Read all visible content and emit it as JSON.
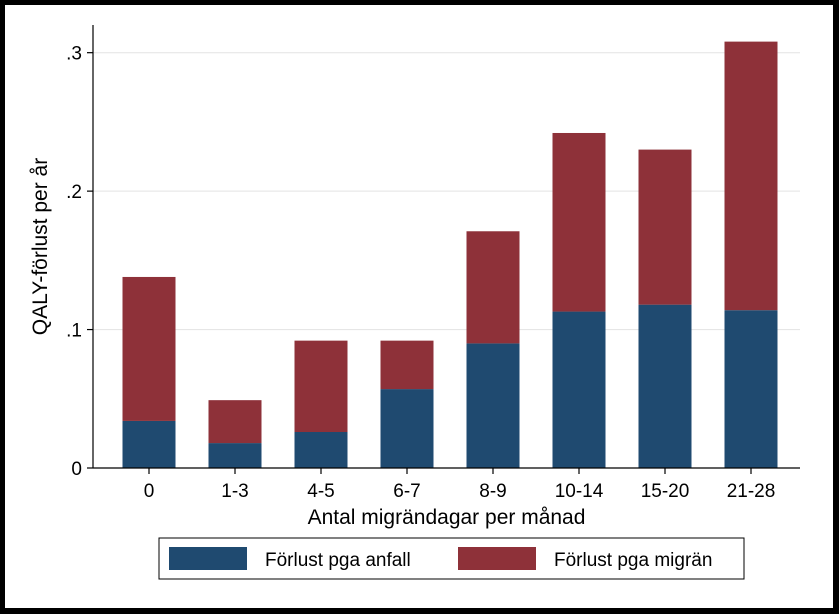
{
  "chart_data": {
    "type": "bar",
    "stacked": true,
    "title": "",
    "xlabel": "Antal migrändagar per månad",
    "ylabel": "QALY-förlust per år",
    "categories": [
      "0",
      "1-3",
      "4-5",
      "6-7",
      "8-9",
      "10-14",
      "15-20",
      "21-28"
    ],
    "ylim": [
      0,
      0.32
    ],
    "yticks": [
      0,
      0.1,
      0.2,
      0.3
    ],
    "ytick_labels": [
      "0",
      ".1",
      ".2",
      ".3"
    ],
    "grid": true,
    "legend_position": "bottom",
    "series": [
      {
        "name": "Förlust pga anfall",
        "color": "#1f4a70",
        "values": [
          0.034,
          0.018,
          0.026,
          0.057,
          0.09,
          0.113,
          0.118,
          0.114
        ]
      },
      {
        "name": "Förlust pga migrän",
        "color": "#8e3139",
        "values": [
          0.104,
          0.031,
          0.066,
          0.035,
          0.081,
          0.129,
          0.112,
          0.194
        ]
      }
    ]
  }
}
